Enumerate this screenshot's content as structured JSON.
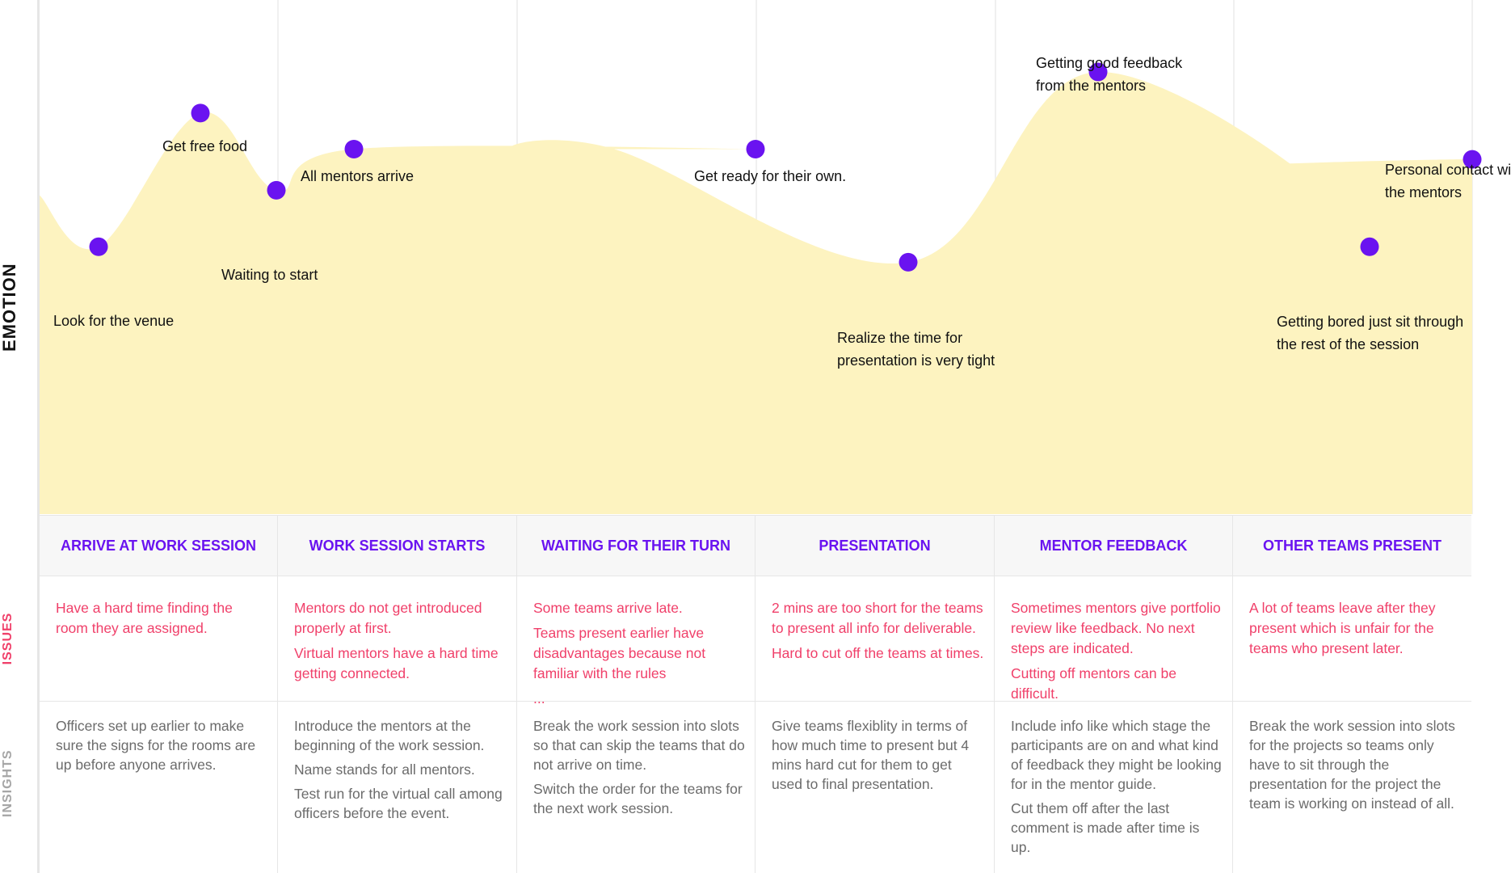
{
  "side_labels": {
    "emotion": "EMOTION",
    "issues": "ISSUES",
    "insights": "INSIGHTS"
  },
  "colors": {
    "curve_fill": "#fdf3c0",
    "dot": "#6a13f0",
    "stage_text": "#6a13f0",
    "issue_text": "#f0406a",
    "insight_text": "#6b6b6b"
  },
  "emotion_points": [
    {
      "label_lines": [
        "Look for the venue"
      ],
      "level": 0.52
    },
    {
      "label_lines": [
        "Get free food"
      ],
      "level": 0.78
    },
    {
      "label_lines": [
        "Waiting to start"
      ],
      "level": 0.63
    },
    {
      "label_lines": [
        "All mentors arrive"
      ],
      "level": 0.71
    },
    {
      "label_lines": [
        "Get ready for their own."
      ],
      "level": 0.71
    },
    {
      "label_lines": [
        "Realize the time for",
        "presentation is very tight"
      ],
      "level": 0.49
    },
    {
      "label_lines": [
        "Getting good feedback",
        "from the mentors"
      ],
      "level": 0.86
    },
    {
      "label_lines": [
        "Getting bored just sit through",
        "the rest of the session"
      ],
      "level": 0.52
    },
    {
      "label_lines": [
        "Personal contact with",
        "the mentors"
      ],
      "level": 0.69
    }
  ],
  "stages": [
    {
      "title": "ARRIVE AT WORK SESSION",
      "issues": [
        "Have a hard time finding the room they are assigned."
      ],
      "insights": [
        "Officers set up earlier to make sure the signs for the rooms are up before anyone arrives."
      ]
    },
    {
      "title": "WORK SESSION STARTS",
      "issues": [
        "Mentors do not get introduced properly at first.",
        "Virtual mentors have a hard time getting connected."
      ],
      "insights": [
        "Introduce the mentors at the beginning of the work session.",
        "Name stands for all mentors.",
        "Test run for the virtual call among officers before the event."
      ]
    },
    {
      "title": "WAITING FOR THEIR TURN",
      "issues": [
        "Some teams arrive late.",
        "Teams present earlier have disadvantages because not familiar with the rules",
        "..."
      ],
      "insights": [
        "Break the work session into slots so that can skip the teams that do not arrive on time.",
        "Switch the order for the teams for the next work session."
      ]
    },
    {
      "title": "PRESENTATION",
      "issues": [
        "2 mins are too short for the teams to present all info for deliverable.",
        "Hard to cut off the teams at times."
      ],
      "insights": [
        "Give teams flexiblity in terms of how much time to present but 4 mins hard cut for them to get used to final presentation."
      ]
    },
    {
      "title": "MENTOR FEEDBACK",
      "issues": [
        "Sometimes mentors give portfolio review like feedback. No next steps are indicated.",
        "Cutting off mentors can be difficult."
      ],
      "insights": [
        "Include info like which stage the participants are on and what kind of feedback they might be looking for in the mentor guide.",
        "Cut them off after the last comment is made after time is up."
      ]
    },
    {
      "title": "OTHER TEAMS PRESENT",
      "issues": [
        "A lot of teams leave after they present which is unfair for the teams who present later."
      ],
      "insights": [
        "Break the work session into slots for the projects so teams only have to sit through the presentation for the project the team is working on instead of all."
      ]
    }
  ]
}
